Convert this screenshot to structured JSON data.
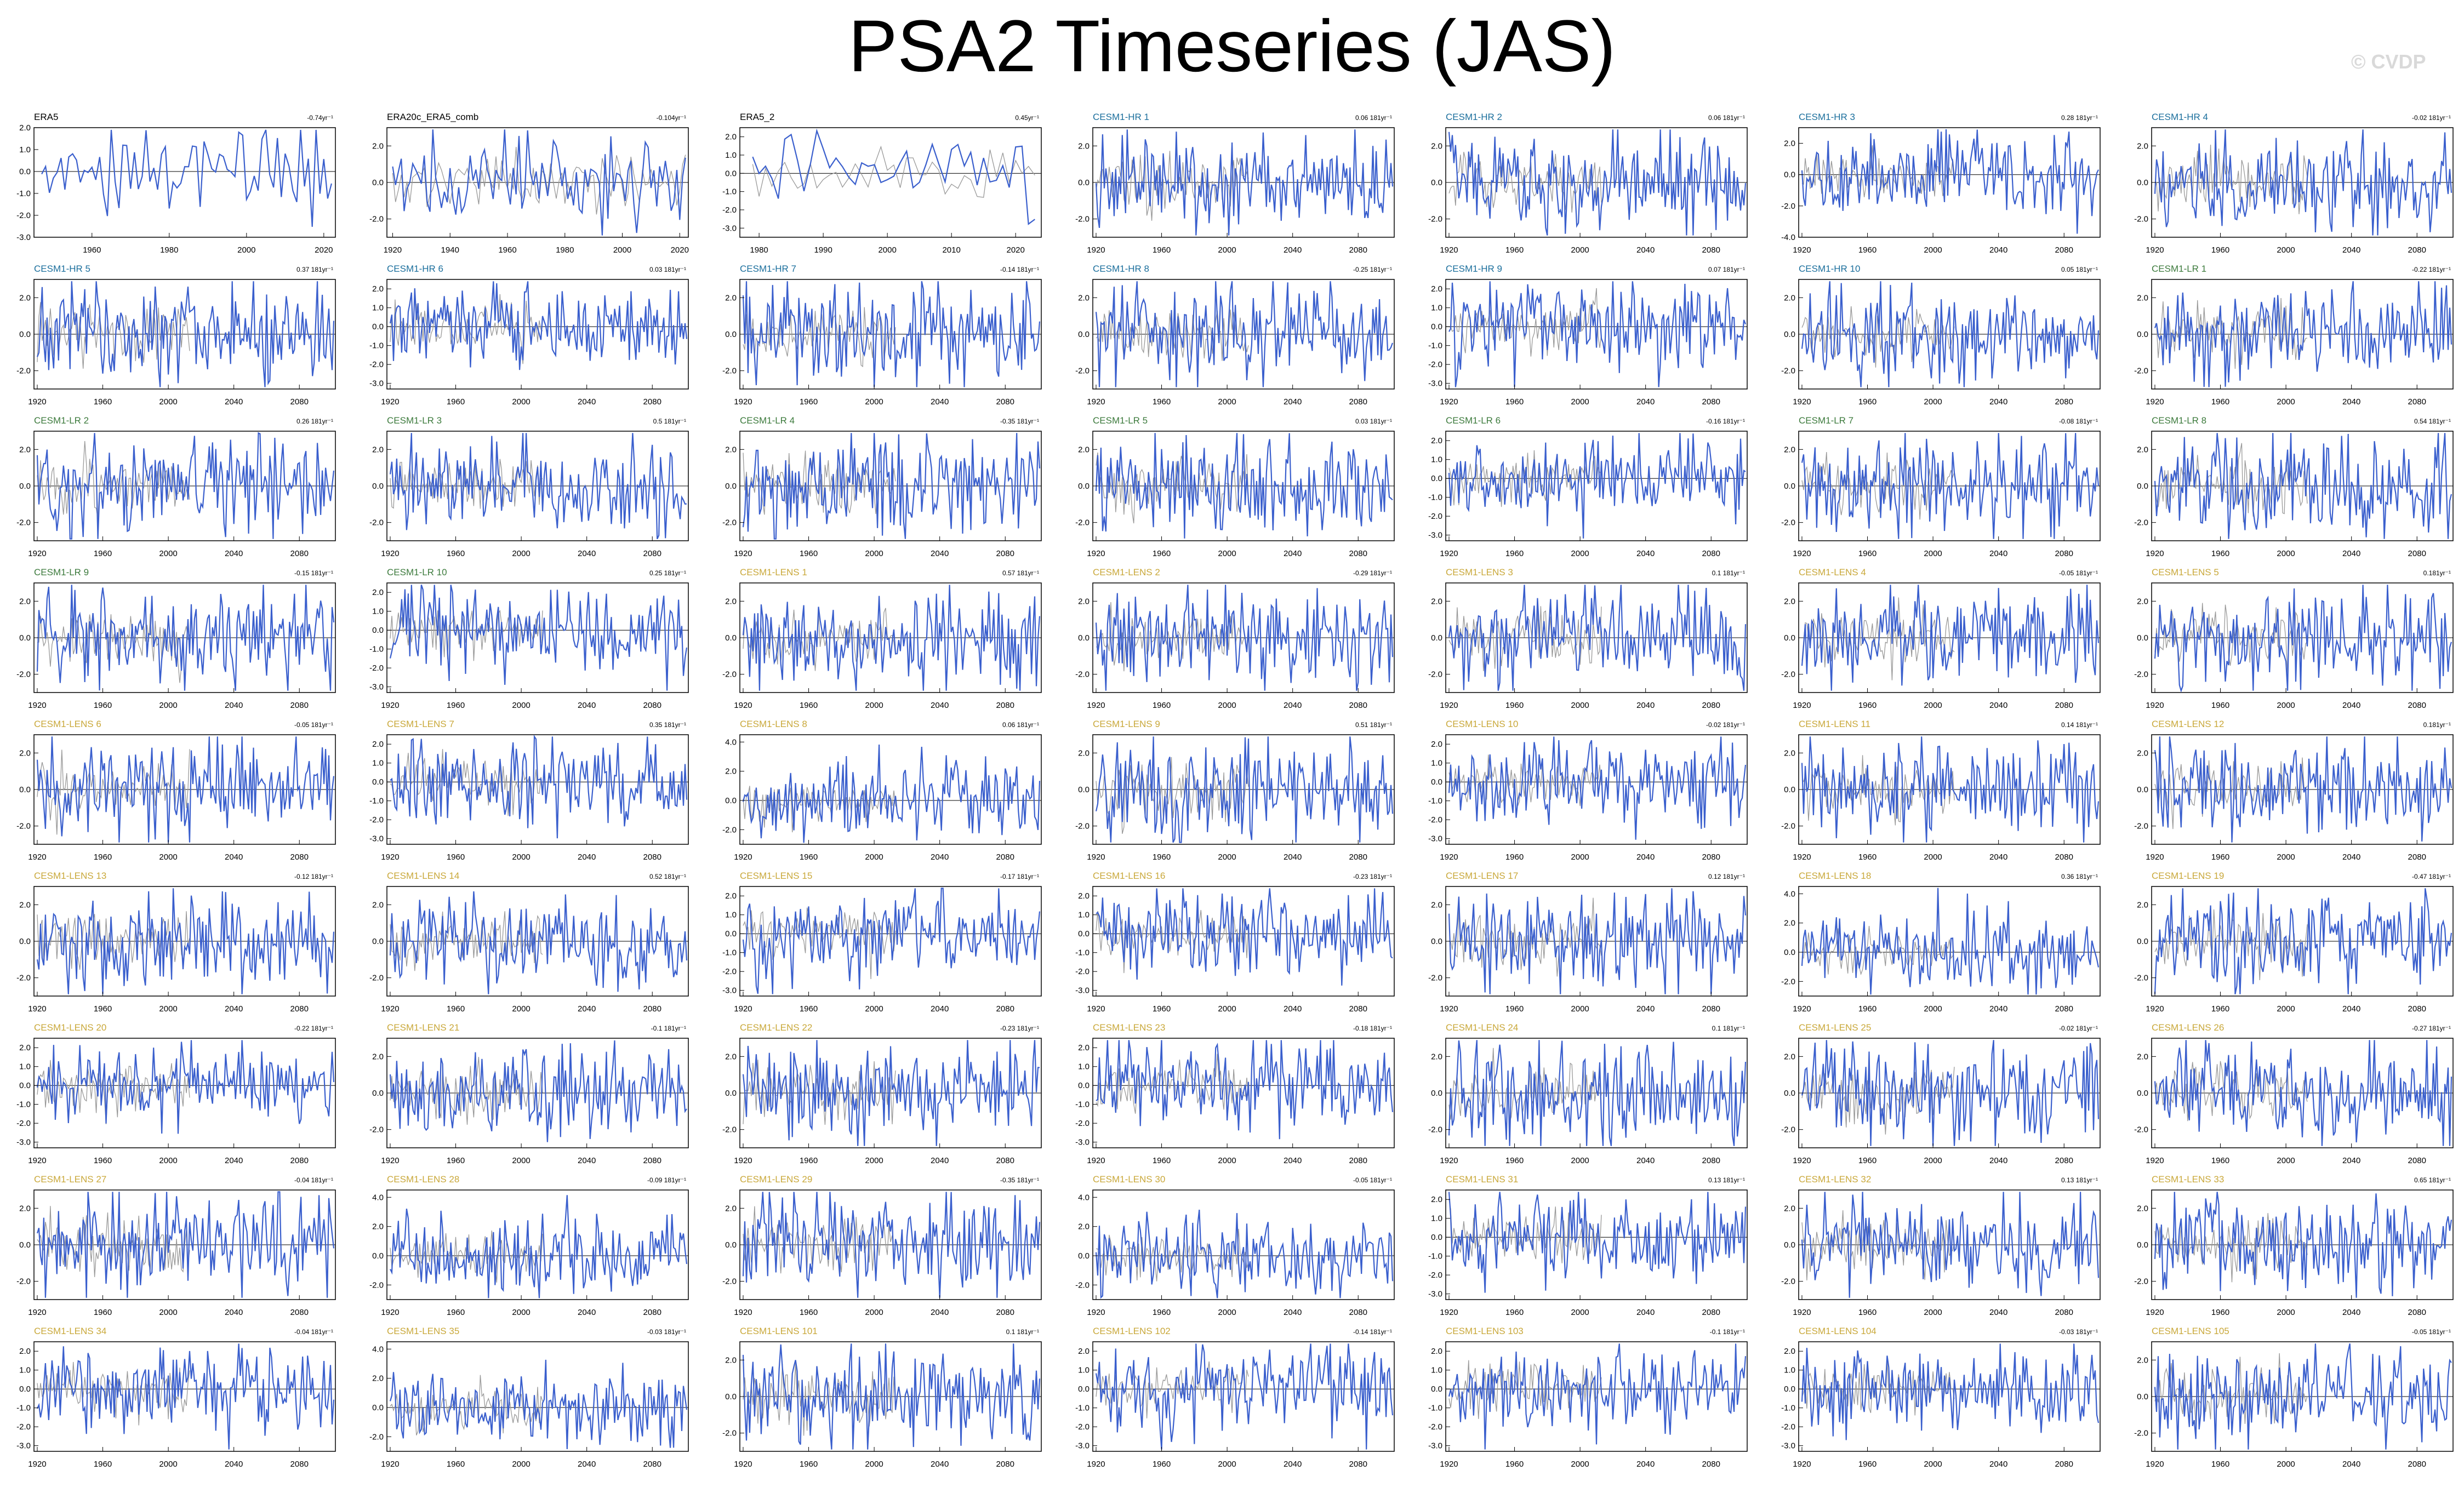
{
  "title": "PSA2 Timeseries (JAS)",
  "watermark": "© CVDP",
  "colors": {
    "obs_line": "#3a5fcd",
    "model_line": "#3a5fcd",
    "ensemble_mean": "#999999",
    "zero_line": "#000000",
    "obs_title": "#000000",
    "hr_title": "#1a6e9c",
    "lr_title": "#3c7a3c",
    "lens_title": "#c9a83a"
  },
  "chart_data": [
    {
      "type": "line",
      "title": "ERA5",
      "trend": "-0.74yr⁻¹",
      "group": "obs",
      "xlim": [
        1945,
        2023
      ],
      "xticks": [
        1960,
        1980,
        2000,
        2020
      ],
      "ylim": [
        -3,
        2
      ],
      "yticks": [
        2.0,
        1.0,
        0.0,
        -1.0,
        -2.0,
        -3.0
      ],
      "seed": 11
    },
    {
      "type": "line",
      "title": "ERA20c_ERA5_comb",
      "trend": "-0.104yr⁻¹",
      "group": "obs",
      "xlim": [
        1918,
        2023
      ],
      "xticks": [
        1920,
        1940,
        1960,
        1980,
        2000,
        2020
      ],
      "ylim": [
        -3,
        3
      ],
      "yticks": [
        2.0,
        0.0,
        -2.0
      ],
      "seed": 12
    },
    {
      "type": "line",
      "title": "ERA5_2",
      "trend": "0.45yr⁻¹",
      "group": "obs",
      "xlim": [
        1977,
        2024
      ],
      "xticks": [
        1980,
        1990,
        2000,
        2010,
        2020
      ],
      "ylim": [
        -3.5,
        2.5
      ],
      "yticks": [
        2.0,
        1.0,
        0.0,
        -1.0,
        -2.0,
        -3.0
      ],
      "seed": 13
    },
    {
      "type": "line",
      "title": "CESM1-HR 1",
      "trend": "0.06 181yr⁻¹",
      "group": "hr",
      "seed": 21
    },
    {
      "type": "line",
      "title": "CESM1-HR 2",
      "trend": "0.06 181yr⁻¹",
      "group": "hr",
      "seed": 22
    },
    {
      "type": "line",
      "title": "CESM1-HR 3",
      "trend": "0.28 181yr⁻¹",
      "group": "hr",
      "ylim": [
        -4,
        3
      ],
      "yticks": [
        2.0,
        0.0,
        -2.0,
        -4.0
      ],
      "seed": 23
    },
    {
      "type": "line",
      "title": "CESM1-HR 4",
      "trend": "-0.02 181yr⁻¹",
      "group": "hr",
      "seed": 24
    },
    {
      "type": "line",
      "title": "CESM1-HR 5",
      "trend": "0.37 181yr⁻¹",
      "group": "hr",
      "seed": 25
    },
    {
      "type": "line",
      "title": "CESM1-HR 6",
      "trend": "0.03 181yr⁻¹",
      "group": "hr",
      "ylim": [
        -3.3,
        2.5
      ],
      "yticks": [
        2.0,
        1.0,
        0.0,
        -1.0,
        -2.0,
        -3.0
      ],
      "seed": 26
    },
    {
      "type": "line",
      "title": "CESM1-HR 7",
      "trend": "-0.14 181yr⁻¹",
      "group": "hr",
      "seed": 27
    },
    {
      "type": "line",
      "title": "CESM1-HR 8",
      "trend": "-0.25 181yr⁻¹",
      "group": "hr",
      "seed": 28
    },
    {
      "type": "line",
      "title": "CESM1-HR 9",
      "trend": "0.07 181yr⁻¹",
      "group": "hr",
      "ylim": [
        -3.3,
        2.5
      ],
      "yticks": [
        2.0,
        1.0,
        0.0,
        -1.0,
        -2.0,
        -3.0
      ],
      "seed": 29
    },
    {
      "type": "line",
      "title": "CESM1-HR 10",
      "trend": "0.05 181yr⁻¹",
      "group": "hr",
      "seed": 30
    },
    {
      "type": "line",
      "title": "CESM1-LR 1",
      "trend": "-0.22 181yr⁻¹",
      "group": "lr",
      "seed": 31
    },
    {
      "type": "line",
      "title": "CESM1-LR 2",
      "trend": "0.26 181yr⁻¹",
      "group": "lr",
      "seed": 32
    },
    {
      "type": "line",
      "title": "CESM1-LR 3",
      "trend": "0.5 181yr⁻¹",
      "group": "lr",
      "seed": 33
    },
    {
      "type": "line",
      "title": "CESM1-LR 4",
      "trend": "-0.35 181yr⁻¹",
      "group": "lr",
      "seed": 34
    },
    {
      "type": "line",
      "title": "CESM1-LR 5",
      "trend": "0.03 181yr⁻¹",
      "group": "lr",
      "seed": 35
    },
    {
      "type": "line",
      "title": "CESM1-LR 6",
      "trend": "-0.16 181yr⁻¹",
      "group": "lr",
      "ylim": [
        -3.3,
        2.5
      ],
      "yticks": [
        2.0,
        1.0,
        0.0,
        -1.0,
        -2.0,
        -3.0
      ],
      "seed": 36
    },
    {
      "type": "line",
      "title": "CESM1-LR 7",
      "trend": "-0.08 181yr⁻¹",
      "group": "lr",
      "seed": 37
    },
    {
      "type": "line",
      "title": "CESM1-LR 8",
      "trend": "0.54 181yr⁻¹",
      "group": "lr",
      "seed": 38
    },
    {
      "type": "line",
      "title": "CESM1-LR 9",
      "trend": "-0.15 181yr⁻¹",
      "group": "lr",
      "seed": 39
    },
    {
      "type": "line",
      "title": "CESM1-LR 10",
      "trend": "0.25 181yr⁻¹",
      "group": "lr",
      "ylim": [
        -3.3,
        2.5
      ],
      "yticks": [
        2.0,
        1.0,
        0.0,
        -1.0,
        -2.0,
        -3.0
      ],
      "seed": 40
    },
    {
      "type": "line",
      "title": "CESM1-LENS 1",
      "trend": "0.57 181yr⁻¹",
      "group": "lens",
      "seed": 41
    },
    {
      "type": "line",
      "title": "CESM1-LENS 2",
      "trend": "-0.29 181yr⁻¹",
      "group": "lens",
      "seed": 42
    },
    {
      "type": "line",
      "title": "CESM1-LENS 3",
      "trend": "0.1 181yr⁻¹",
      "group": "lens",
      "seed": 43
    },
    {
      "type": "line",
      "title": "CESM1-LENS 4",
      "trend": "-0.05 181yr⁻¹",
      "group": "lens",
      "seed": 44
    },
    {
      "type": "line",
      "title": "CESM1-LENS 5",
      "trend": "0.181yr⁻¹",
      "group": "lens",
      "seed": 45
    },
    {
      "type": "line",
      "title": "CESM1-LENS 6",
      "trend": "-0.05 181yr⁻¹",
      "group": "lens",
      "seed": 46
    },
    {
      "type": "line",
      "title": "CESM1-LENS 7",
      "trend": "0.35 181yr⁻¹",
      "group": "lens",
      "ylim": [
        -3.3,
        2.5
      ],
      "yticks": [
        2.0,
        1.0,
        0.0,
        -1.0,
        -2.0,
        -3.0
      ],
      "seed": 47
    },
    {
      "type": "line",
      "title": "CESM1-LENS 8",
      "trend": "0.06 181yr⁻¹",
      "group": "lens",
      "ylim": [
        -3,
        4.5
      ],
      "yticks": [
        4.0,
        2.0,
        0.0,
        -2.0
      ],
      "seed": 48
    },
    {
      "type": "line",
      "title": "CESM1-LENS 9",
      "trend": "0.51 181yr⁻¹",
      "group": "lens",
      "seed": 49
    },
    {
      "type": "line",
      "title": "CESM1-LENS 10",
      "trend": "-0.02 181yr⁻¹",
      "group": "lens",
      "ylim": [
        -3.3,
        2.5
      ],
      "yticks": [
        2.0,
        1.0,
        0.0,
        -1.0,
        -2.0,
        -3.0
      ],
      "seed": 50
    },
    {
      "type": "line",
      "title": "CESM1-LENS 11",
      "trend": "0.14 181yr⁻¹",
      "group": "lens",
      "seed": 51
    },
    {
      "type": "line",
      "title": "CESM1-LENS 12",
      "trend": "0.181yr⁻¹",
      "group": "lens",
      "seed": 52
    },
    {
      "type": "line",
      "title": "CESM1-LENS 13",
      "trend": "-0.12 181yr⁻¹",
      "group": "lens",
      "seed": 53
    },
    {
      "type": "line",
      "title": "CESM1-LENS 14",
      "trend": "0.52 181yr⁻¹",
      "group": "lens",
      "seed": 54
    },
    {
      "type": "line",
      "title": "CESM1-LENS 15",
      "trend": "-0.17 181yr⁻¹",
      "group": "lens",
      "ylim": [
        -3.3,
        2.5
      ],
      "yticks": [
        2.0,
        1.0,
        0.0,
        -1.0,
        -2.0,
        -3.0
      ],
      "seed": 55
    },
    {
      "type": "line",
      "title": "CESM1-LENS 16",
      "trend": "-0.23 181yr⁻¹",
      "group": "lens",
      "ylim": [
        -3.3,
        2.5
      ],
      "yticks": [
        2.0,
        1.0,
        0.0,
        -1.0,
        -2.0,
        -3.0
      ],
      "seed": 56
    },
    {
      "type": "line",
      "title": "CESM1-LENS 17",
      "trend": "0.12 181yr⁻¹",
      "group": "lens",
      "seed": 57
    },
    {
      "type": "line",
      "title": "CESM1-LENS 18",
      "trend": "0.36 181yr⁻¹",
      "group": "lens",
      "ylim": [
        -3,
        4.5
      ],
      "yticks": [
        4.0,
        2.0,
        0.0,
        -2.0
      ],
      "seed": 58
    },
    {
      "type": "line",
      "title": "CESM1-LENS 19",
      "trend": "-0.47 181yr⁻¹",
      "group": "lens",
      "seed": 59
    },
    {
      "type": "line",
      "title": "CESM1-LENS 20",
      "trend": "-0.22 181yr⁻¹",
      "group": "lens",
      "ylim": [
        -3.3,
        2.5
      ],
      "yticks": [
        2.0,
        1.0,
        0.0,
        -1.0,
        -2.0,
        -3.0
      ],
      "seed": 60
    },
    {
      "type": "line",
      "title": "CESM1-LENS 21",
      "trend": "-0.1 181yr⁻¹",
      "group": "lens",
      "seed": 61
    },
    {
      "type": "line",
      "title": "CESM1-LENS 22",
      "trend": "-0.23 181yr⁻¹",
      "group": "lens",
      "seed": 62
    },
    {
      "type": "line",
      "title": "CESM1-LENS 23",
      "trend": "-0.18 181yr⁻¹",
      "group": "lens",
      "ylim": [
        -3.3,
        2.5
      ],
      "yticks": [
        2.0,
        1.0,
        0.0,
        -1.0,
        -2.0,
        -3.0
      ],
      "seed": 63
    },
    {
      "type": "line",
      "title": "CESM1-LENS 24",
      "trend": "0.1 181yr⁻¹",
      "group": "lens",
      "seed": 64
    },
    {
      "type": "line",
      "title": "CESM1-LENS 25",
      "trend": "-0.02 181yr⁻¹",
      "group": "lens",
      "seed": 65
    },
    {
      "type": "line",
      "title": "CESM1-LENS 26",
      "trend": "-0.27 181yr⁻¹",
      "group": "lens",
      "seed": 66
    },
    {
      "type": "line",
      "title": "CESM1-LENS 27",
      "trend": "-0.04 181yr⁻¹",
      "group": "lens",
      "seed": 67
    },
    {
      "type": "line",
      "title": "CESM1-LENS 28",
      "trend": "-0.09 181yr⁻¹",
      "group": "lens",
      "ylim": [
        -3,
        4.5
      ],
      "yticks": [
        4.0,
        2.0,
        0.0,
        -2.0
      ],
      "seed": 68
    },
    {
      "type": "line",
      "title": "CESM1-LENS 29",
      "trend": "-0.35 181yr⁻¹",
      "group": "lens",
      "seed": 69
    },
    {
      "type": "line",
      "title": "CESM1-LENS 30",
      "trend": "-0.05 181yr⁻¹",
      "group": "lens",
      "ylim": [
        -3,
        4.5
      ],
      "yticks": [
        4.0,
        2.0,
        0.0,
        -2.0
      ],
      "seed": 70
    },
    {
      "type": "line",
      "title": "CESM1-LENS 31",
      "trend": "0.13 181yr⁻¹",
      "group": "lens",
      "ylim": [
        -3.3,
        2.5
      ],
      "yticks": [
        2.0,
        1.0,
        0.0,
        -1.0,
        -2.0,
        -3.0
      ],
      "seed": 71
    },
    {
      "type": "line",
      "title": "CESM1-LENS 32",
      "trend": "0.13 181yr⁻¹",
      "group": "lens",
      "seed": 72
    },
    {
      "type": "line",
      "title": "CESM1-LENS 33",
      "trend": "0.65 181yr⁻¹",
      "group": "lens",
      "seed": 73
    },
    {
      "type": "line",
      "title": "CESM1-LENS 34",
      "trend": "-0.04 181yr⁻¹",
      "group": "lens",
      "ylim": [
        -3.3,
        2.5
      ],
      "yticks": [
        2.0,
        1.0,
        0.0,
        -1.0,
        -2.0,
        -3.0
      ],
      "seed": 74
    },
    {
      "type": "line",
      "title": "CESM1-LENS 35",
      "trend": "-0.03 181yr⁻¹",
      "group": "lens",
      "ylim": [
        -3,
        4.5
      ],
      "yticks": [
        4.0,
        2.0,
        0.0,
        -2.0
      ],
      "seed": 75
    },
    {
      "type": "line",
      "title": "CESM1-LENS 101",
      "trend": "0.1 181yr⁻¹",
      "group": "lens",
      "seed": 76
    },
    {
      "type": "line",
      "title": "CESM1-LENS 102",
      "trend": "-0.14 181yr⁻¹",
      "group": "lens",
      "ylim": [
        -3.3,
        2.5
      ],
      "yticks": [
        2.0,
        1.0,
        0.0,
        -1.0,
        -2.0,
        -3.0
      ],
      "seed": 77
    },
    {
      "type": "line",
      "title": "CESM1-LENS 103",
      "trend": "-0.1 181yr⁻¹",
      "group": "lens",
      "ylim": [
        -3.3,
        2.5
      ],
      "yticks": [
        2.0,
        1.0,
        0.0,
        -1.0,
        -2.0,
        -3.0
      ],
      "seed": 78
    },
    {
      "type": "line",
      "title": "CESM1-LENS 104",
      "trend": "-0.03 181yr⁻¹",
      "group": "lens",
      "ylim": [
        -3.3,
        2.5
      ],
      "yticks": [
        2.0,
        1.0,
        0.0,
        -1.0,
        -2.0,
        -3.0
      ],
      "seed": 79
    },
    {
      "type": "line",
      "title": "CESM1-LENS 105",
      "trend": "-0.05 181yr⁻¹",
      "group": "lens",
      "seed": 80
    }
  ],
  "defaults": {
    "xlim": [
      1918,
      2102
    ],
    "xticks": [
      1920,
      1960,
      2000,
      2040,
      2080
    ],
    "ylim": [
      -3,
      3
    ],
    "yticks": [
      2.0,
      0.0,
      -2.0
    ]
  }
}
